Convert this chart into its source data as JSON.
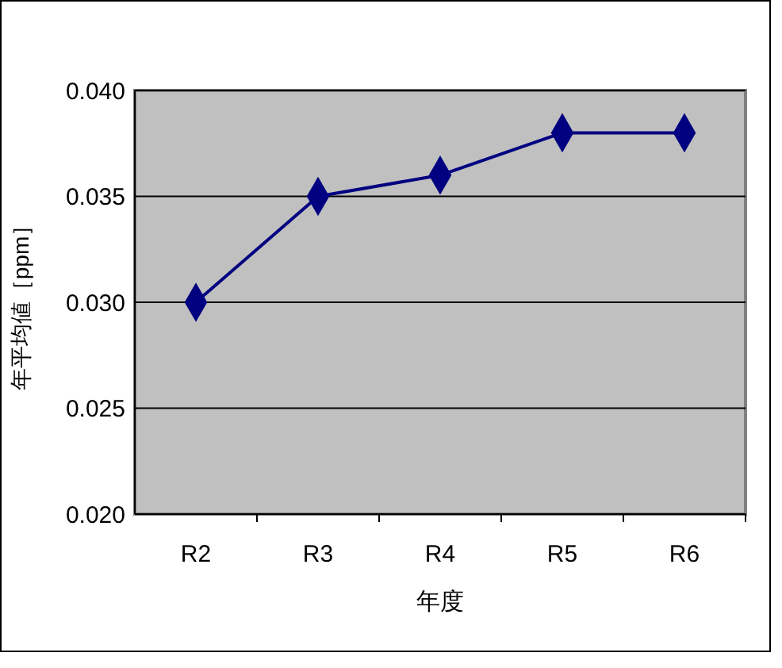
{
  "chart_data": {
    "type": "line",
    "xlabel": "年度",
    "ylabel": "年平均値［ppm］",
    "categories": [
      "R2",
      "R3",
      "R4",
      "R5",
      "R6"
    ],
    "series": [
      {
        "color": "#000080",
        "values": [
          0.03,
          0.035,
          0.036,
          0.038,
          0.038
        ]
      }
    ],
    "ylim": [
      0.02,
      0.04
    ],
    "yticks": [
      {
        "value": 0.02,
        "label": "0.020"
      },
      {
        "value": 0.025,
        "label": "0.025"
      },
      {
        "value": 0.03,
        "label": "0.030"
      },
      {
        "value": 0.035,
        "label": "0.035"
      },
      {
        "value": 0.04,
        "label": "0.040"
      }
    ],
    "grid": "y",
    "marker": "diamond"
  }
}
